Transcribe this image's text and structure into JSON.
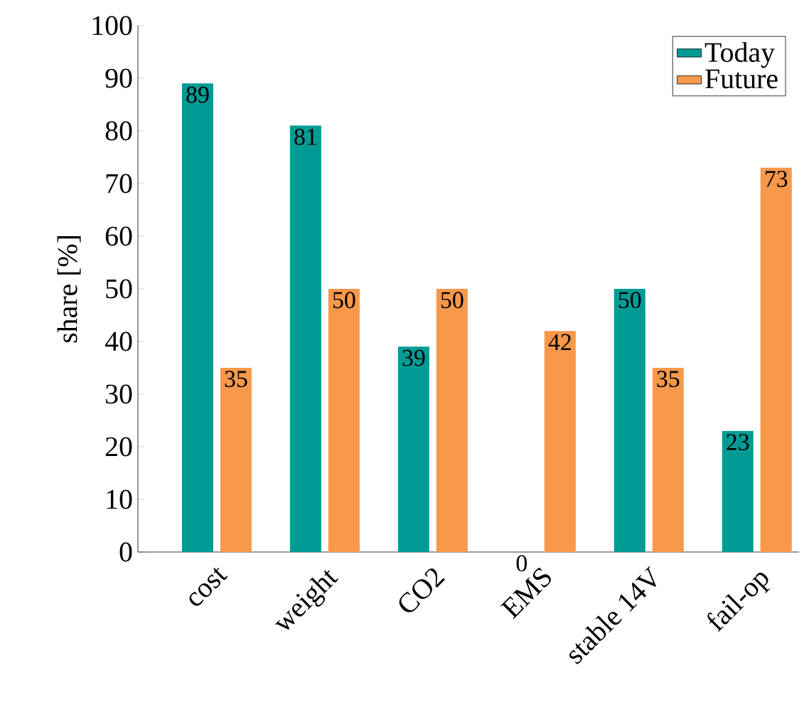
{
  "chart_data": {
    "type": "bar",
    "ylabel": "share [%]",
    "categories": [
      "cost",
      "weight",
      "CO2",
      "EMS",
      "stable 14V",
      "fail-op"
    ],
    "series": [
      {
        "name": "Today",
        "color": "#009b95",
        "values": [
          89,
          81,
          39,
          0,
          50,
          23
        ]
      },
      {
        "name": "Future",
        "color": "#f7984a",
        "values": [
          35,
          50,
          50,
          42,
          35,
          73
        ]
      }
    ],
    "ylim": [
      0,
      100
    ],
    "yticks": [
      0,
      10,
      20,
      30,
      40,
      50,
      60,
      70,
      80,
      90,
      100
    ],
    "data_labels": true,
    "legend": "top right",
    "grid": false
  }
}
